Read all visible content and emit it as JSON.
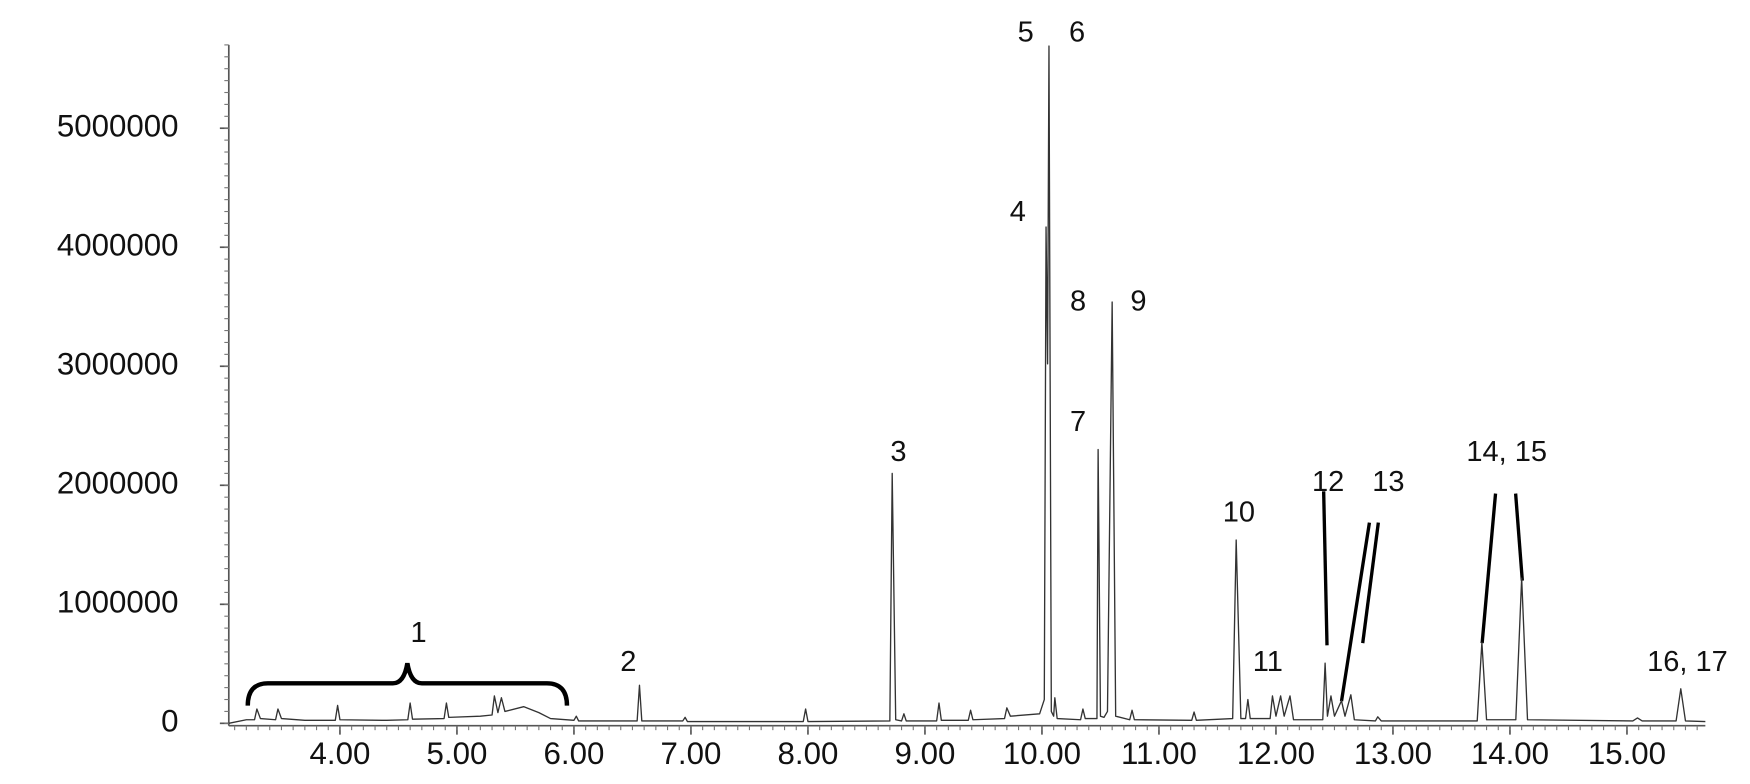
{
  "chart_data": {
    "type": "line",
    "x": [
      3.05,
      3.2,
      3.27,
      3.29,
      3.32,
      3.45,
      3.47,
      3.5,
      3.7,
      3.96,
      3.98,
      4.0,
      4.4,
      4.58,
      4.6,
      4.62,
      4.89,
      4.91,
      4.93,
      5.2,
      5.3,
      5.32,
      5.35,
      5.38,
      5.41,
      5.57,
      5.7,
      5.8,
      6.0,
      6.02,
      6.04,
      6.54,
      6.56,
      6.58,
      6.93,
      6.95,
      6.97,
      7.96,
      7.98,
      8.0,
      8.7,
      8.72,
      8.75,
      8.8,
      8.82,
      8.84,
      9.1,
      9.12,
      9.14,
      9.37,
      9.39,
      9.41,
      9.68,
      9.7,
      9.73,
      9.98,
      10.02,
      10.035,
      10.048,
      10.06,
      10.08,
      10.1,
      10.11,
      10.13,
      10.33,
      10.35,
      10.37,
      10.47,
      10.48,
      10.5,
      10.53,
      10.56,
      10.6,
      10.63,
      10.75,
      10.77,
      10.79,
      11.28,
      11.3,
      11.32,
      11.63,
      11.66,
      11.7,
      11.74,
      11.76,
      11.78,
      11.95,
      11.97,
      12.0,
      12.04,
      12.07,
      12.12,
      12.15,
      12.4,
      12.42,
      12.44,
      12.47,
      12.5,
      12.56,
      12.59,
      12.64,
      12.67,
      12.85,
      12.87,
      12.9,
      13.72,
      13.76,
      13.8,
      14.05,
      14.1,
      14.15,
      15.05,
      15.09,
      15.13,
      15.42,
      15.46,
      15.5,
      15.67
    ],
    "series": [
      {
        "color": "#333333",
        "values": [
          0,
          30000,
          30000,
          120000,
          40000,
          30000,
          120000,
          40000,
          25000,
          25000,
          150000,
          30000,
          25000,
          30000,
          170000,
          35000,
          40000,
          170000,
          50000,
          60000,
          70000,
          230000,
          90000,
          215000,
          100000,
          140000,
          90000,
          40000,
          25000,
          60000,
          20000,
          20000,
          320000,
          20000,
          20000,
          50000,
          15000,
          15000,
          120000,
          15000,
          20000,
          2100000,
          30000,
          20000,
          80000,
          20000,
          20000,
          170000,
          25000,
          25000,
          110000,
          30000,
          40000,
          130000,
          60000,
          80000,
          200000,
          4170000,
          3020000,
          5690000,
          100000,
          60000,
          215000,
          40000,
          30000,
          120000,
          40000,
          40000,
          2300000,
          60000,
          50000,
          100000,
          3540000,
          60000,
          30000,
          110000,
          30000,
          25000,
          95000,
          25000,
          40000,
          1540000,
          40000,
          40000,
          200000,
          40000,
          40000,
          230000,
          60000,
          230000,
          60000,
          230000,
          30000,
          30000,
          505000,
          60000,
          230000,
          60000,
          190000,
          60000,
          240000,
          30000,
          20000,
          55000,
          20000,
          20000,
          680000,
          30000,
          30000,
          1220000,
          30000,
          20000,
          45000,
          20000,
          20000,
          290000,
          20000,
          15000
        ]
      }
    ],
    "xlim": [
      3.05,
      15.67
    ],
    "ylim": [
      -20000,
      5700000
    ],
    "xticks": [
      {
        "value": 4,
        "label": "4.00"
      },
      {
        "value": 5,
        "label": "5.00"
      },
      {
        "value": 6,
        "label": "6.00"
      },
      {
        "value": 7,
        "label": "7.00"
      },
      {
        "value": 8,
        "label": "8.00"
      },
      {
        "value": 9,
        "label": "9.00"
      },
      {
        "value": 10,
        "label": "10.00"
      },
      {
        "value": 11,
        "label": "11.00"
      },
      {
        "value": 12,
        "label": "12.00"
      },
      {
        "value": 13,
        "label": "13.00"
      },
      {
        "value": 14,
        "label": "14.00"
      },
      {
        "value": 15,
        "label": "15.00"
      }
    ],
    "yticks": [
      0,
      1000000,
      2000000,
      3000000,
      4000000,
      5000000
    ],
    "annotations": [
      "1",
      "2",
      "3",
      "4",
      "5",
      "6",
      "7",
      "8",
      "9",
      "10",
      "11",
      "12",
      "13",
      "14, 15",
      "16, 17"
    ]
  }
}
